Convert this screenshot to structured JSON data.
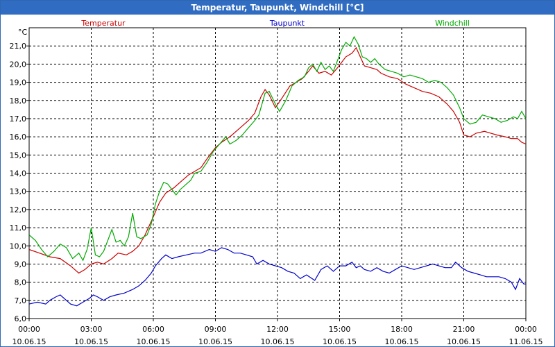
{
  "window": {
    "title": "Temperatur, Taupunkt, Windchill [°C]"
  },
  "chart_data": {
    "type": "line",
    "title": "Temperatur, Taupunkt, Windchill [°C]",
    "ylabel": "°C",
    "ylim": [
      6.0,
      22.0
    ],
    "yticks": [
      "6,0",
      "7,0",
      "8,0",
      "9,0",
      "10,0",
      "11,0",
      "12,0",
      "13,0",
      "14,0",
      "15,0",
      "16,0",
      "17,0",
      "18,0",
      "19,0",
      "20,0",
      "21,0"
    ],
    "xlim": [
      0,
      24
    ],
    "xticks": [
      {
        "time": "00:00",
        "date": "10.06.15"
      },
      {
        "time": "03:00",
        "date": "10.06.15"
      },
      {
        "time": "06:00",
        "date": "10.06.15"
      },
      {
        "time": "09:00",
        "date": "10.06.15"
      },
      {
        "time": "12:00",
        "date": "10.06.15"
      },
      {
        "time": "15:00",
        "date": "10.06.15"
      },
      {
        "time": "18:00",
        "date": "10.06.15"
      },
      {
        "time": "21:00",
        "date": "10.06.15"
      },
      {
        "time": "00:00",
        "date": "11.06.15"
      }
    ],
    "grid": true,
    "legend_placement": "top",
    "series": [
      {
        "name": "Temperatur",
        "color": "#cc0000",
        "points": [
          [
            0.0,
            9.8
          ],
          [
            0.5,
            9.6
          ],
          [
            1.0,
            9.4
          ],
          [
            1.5,
            9.3
          ],
          [
            2.0,
            8.9
          ],
          [
            2.2,
            8.7
          ],
          [
            2.4,
            8.5
          ],
          [
            2.7,
            8.7
          ],
          [
            3.0,
            9.0
          ],
          [
            3.3,
            9.1
          ],
          [
            3.6,
            9.0
          ],
          [
            4.0,
            9.3
          ],
          [
            4.3,
            9.6
          ],
          [
            4.7,
            9.5
          ],
          [
            5.0,
            9.7
          ],
          [
            5.3,
            10.0
          ],
          [
            5.6,
            10.6
          ],
          [
            6.0,
            11.6
          ],
          [
            6.3,
            12.4
          ],
          [
            6.6,
            12.9
          ],
          [
            7.0,
            13.2
          ],
          [
            7.3,
            13.5
          ],
          [
            7.7,
            13.9
          ],
          [
            8.0,
            14.1
          ],
          [
            8.3,
            14.3
          ],
          [
            8.6,
            14.8
          ],
          [
            9.0,
            15.4
          ],
          [
            9.3,
            15.7
          ],
          [
            9.7,
            16.0
          ],
          [
            10.0,
            16.3
          ],
          [
            10.3,
            16.6
          ],
          [
            10.6,
            16.9
          ],
          [
            10.9,
            17.3
          ],
          [
            11.2,
            18.2
          ],
          [
            11.4,
            18.6
          ],
          [
            11.6,
            18.3
          ],
          [
            11.9,
            17.6
          ],
          [
            12.2,
            18.1
          ],
          [
            12.6,
            18.8
          ],
          [
            12.9,
            19.0
          ],
          [
            13.2,
            19.2
          ],
          [
            13.5,
            19.6
          ],
          [
            13.7,
            19.9
          ],
          [
            14.0,
            19.5
          ],
          [
            14.3,
            19.6
          ],
          [
            14.6,
            19.4
          ],
          [
            14.9,
            19.8
          ],
          [
            15.1,
            20.1
          ],
          [
            15.3,
            20.4
          ],
          [
            15.6,
            20.6
          ],
          [
            15.8,
            20.9
          ],
          [
            16.0,
            20.4
          ],
          [
            16.2,
            19.9
          ],
          [
            16.5,
            19.8
          ],
          [
            16.8,
            19.7
          ],
          [
            17.0,
            19.5
          ],
          [
            17.4,
            19.3
          ],
          [
            17.8,
            19.2
          ],
          [
            18.2,
            18.9
          ],
          [
            18.6,
            18.7
          ],
          [
            19.0,
            18.5
          ],
          [
            19.4,
            18.4
          ],
          [
            19.8,
            18.2
          ],
          [
            20.2,
            17.8
          ],
          [
            20.5,
            17.4
          ],
          [
            20.8,
            16.8
          ],
          [
            21.0,
            16.1
          ],
          [
            21.3,
            16.0
          ],
          [
            21.6,
            16.2
          ],
          [
            22.0,
            16.3
          ],
          [
            22.3,
            16.2
          ],
          [
            22.6,
            16.1
          ],
          [
            23.0,
            16.0
          ],
          [
            23.3,
            15.9
          ],
          [
            23.6,
            15.9
          ],
          [
            23.8,
            15.7
          ],
          [
            24.0,
            15.6
          ]
        ]
      },
      {
        "name": "Taupunkt",
        "color": "#0000cc",
        "points": [
          [
            0.0,
            6.8
          ],
          [
            0.4,
            6.9
          ],
          [
            0.8,
            6.8
          ],
          [
            1.0,
            7.0
          ],
          [
            1.3,
            7.2
          ],
          [
            1.5,
            7.3
          ],
          [
            1.8,
            7.0
          ],
          [
            2.0,
            6.8
          ],
          [
            2.3,
            6.7
          ],
          [
            2.6,
            6.9
          ],
          [
            2.9,
            7.1
          ],
          [
            3.1,
            7.3
          ],
          [
            3.3,
            7.2
          ],
          [
            3.6,
            7.0
          ],
          [
            3.9,
            7.2
          ],
          [
            4.2,
            7.3
          ],
          [
            4.6,
            7.4
          ],
          [
            5.0,
            7.6
          ],
          [
            5.3,
            7.8
          ],
          [
            5.6,
            8.1
          ],
          [
            5.9,
            8.5
          ],
          [
            6.1,
            8.9
          ],
          [
            6.4,
            9.3
          ],
          [
            6.6,
            9.5
          ],
          [
            6.9,
            9.3
          ],
          [
            7.2,
            9.4
          ],
          [
            7.6,
            9.5
          ],
          [
            8.0,
            9.6
          ],
          [
            8.3,
            9.6
          ],
          [
            8.7,
            9.8
          ],
          [
            9.0,
            9.7
          ],
          [
            9.3,
            9.9
          ],
          [
            9.6,
            9.8
          ],
          [
            9.9,
            9.6
          ],
          [
            10.2,
            9.6
          ],
          [
            10.5,
            9.5
          ],
          [
            10.8,
            9.4
          ],
          [
            11.0,
            9.0
          ],
          [
            11.3,
            9.2
          ],
          [
            11.6,
            9.0
          ],
          [
            11.9,
            8.9
          ],
          [
            12.2,
            8.8
          ],
          [
            12.5,
            8.6
          ],
          [
            12.8,
            8.5
          ],
          [
            13.1,
            8.2
          ],
          [
            13.4,
            8.4
          ],
          [
            13.8,
            8.1
          ],
          [
            14.1,
            8.7
          ],
          [
            14.4,
            8.9
          ],
          [
            14.7,
            8.6
          ],
          [
            15.0,
            8.9
          ],
          [
            15.3,
            8.9
          ],
          [
            15.6,
            9.1
          ],
          [
            15.8,
            8.8
          ],
          [
            16.0,
            8.9
          ],
          [
            16.2,
            8.7
          ],
          [
            16.5,
            8.6
          ],
          [
            16.8,
            8.8
          ],
          [
            17.1,
            8.6
          ],
          [
            17.4,
            8.5
          ],
          [
            17.7,
            8.7
          ],
          [
            18.0,
            8.9
          ],
          [
            18.3,
            8.8
          ],
          [
            18.6,
            8.7
          ],
          [
            18.9,
            8.8
          ],
          [
            19.2,
            8.9
          ],
          [
            19.5,
            9.0
          ],
          [
            19.8,
            8.9
          ],
          [
            20.1,
            8.8
          ],
          [
            20.4,
            8.8
          ],
          [
            20.6,
            9.1
          ],
          [
            20.9,
            8.8
          ],
          [
            21.2,
            8.6
          ],
          [
            21.5,
            8.5
          ],
          [
            21.8,
            8.4
          ],
          [
            22.1,
            8.3
          ],
          [
            22.4,
            8.3
          ],
          [
            22.7,
            8.3
          ],
          [
            23.0,
            8.2
          ],
          [
            23.3,
            8.0
          ],
          [
            23.5,
            7.6
          ],
          [
            23.7,
            8.2
          ],
          [
            23.9,
            7.9
          ],
          [
            24.0,
            7.9
          ]
        ]
      },
      {
        "name": "Windchill",
        "color": "#00aa00",
        "points": [
          [
            0.0,
            10.6
          ],
          [
            0.3,
            10.3
          ],
          [
            0.6,
            9.8
          ],
          [
            0.9,
            9.4
          ],
          [
            1.2,
            9.7
          ],
          [
            1.5,
            10.1
          ],
          [
            1.8,
            9.9
          ],
          [
            2.1,
            9.3
          ],
          [
            2.4,
            9.6
          ],
          [
            2.6,
            9.2
          ],
          [
            2.8,
            9.8
          ],
          [
            3.0,
            11.0
          ],
          [
            3.2,
            9.5
          ],
          [
            3.4,
            9.4
          ],
          [
            3.6,
            9.7
          ],
          [
            3.8,
            10.3
          ],
          [
            4.0,
            10.9
          ],
          [
            4.2,
            10.2
          ],
          [
            4.4,
            10.3
          ],
          [
            4.6,
            10.0
          ],
          [
            4.8,
            10.5
          ],
          [
            5.0,
            11.8
          ],
          [
            5.2,
            10.5
          ],
          [
            5.4,
            10.4
          ],
          [
            5.7,
            10.6
          ],
          [
            5.9,
            11.2
          ],
          [
            6.1,
            12.3
          ],
          [
            6.3,
            13.0
          ],
          [
            6.5,
            13.5
          ],
          [
            6.7,
            13.4
          ],
          [
            6.9,
            13.1
          ],
          [
            7.1,
            12.8
          ],
          [
            7.3,
            13.1
          ],
          [
            7.6,
            13.4
          ],
          [
            7.8,
            13.6
          ],
          [
            8.0,
            14.0
          ],
          [
            8.3,
            14.1
          ],
          [
            8.6,
            14.6
          ],
          [
            8.9,
            15.2
          ],
          [
            9.2,
            15.6
          ],
          [
            9.5,
            16.0
          ],
          [
            9.7,
            15.6
          ],
          [
            10.0,
            15.8
          ],
          [
            10.3,
            16.1
          ],
          [
            10.6,
            16.5
          ],
          [
            10.9,
            16.9
          ],
          [
            11.1,
            17.2
          ],
          [
            11.4,
            18.4
          ],
          [
            11.6,
            18.5
          ],
          [
            11.9,
            17.8
          ],
          [
            12.1,
            17.4
          ],
          [
            12.4,
            18.0
          ],
          [
            12.7,
            18.8
          ],
          [
            13.0,
            19.1
          ],
          [
            13.3,
            19.3
          ],
          [
            13.5,
            19.8
          ],
          [
            13.7,
            20.0
          ],
          [
            13.9,
            19.6
          ],
          [
            14.1,
            20.1
          ],
          [
            14.3,
            19.7
          ],
          [
            14.5,
            19.9
          ],
          [
            14.7,
            19.6
          ],
          [
            14.9,
            20.2
          ],
          [
            15.1,
            20.8
          ],
          [
            15.3,
            21.2
          ],
          [
            15.5,
            21.0
          ],
          [
            15.7,
            21.5
          ],
          [
            15.9,
            21.1
          ],
          [
            16.1,
            20.4
          ],
          [
            16.3,
            20.3
          ],
          [
            16.5,
            20.1
          ],
          [
            16.7,
            20.3
          ],
          [
            16.9,
            20.0
          ],
          [
            17.2,
            19.7
          ],
          [
            17.5,
            19.6
          ],
          [
            17.8,
            19.5
          ],
          [
            18.1,
            19.3
          ],
          [
            18.4,
            19.4
          ],
          [
            18.7,
            19.3
          ],
          [
            19.0,
            19.2
          ],
          [
            19.3,
            19.0
          ],
          [
            19.6,
            19.1
          ],
          [
            19.9,
            19.0
          ],
          [
            20.2,
            18.7
          ],
          [
            20.5,
            18.3
          ],
          [
            20.8,
            17.6
          ],
          [
            21.0,
            17.0
          ],
          [
            21.3,
            16.7
          ],
          [
            21.6,
            16.8
          ],
          [
            21.9,
            17.2
          ],
          [
            22.2,
            17.1
          ],
          [
            22.5,
            17.0
          ],
          [
            22.8,
            16.8
          ],
          [
            23.1,
            16.9
          ],
          [
            23.4,
            17.1
          ],
          [
            23.6,
            17.0
          ],
          [
            23.8,
            17.4
          ],
          [
            24.0,
            17.0
          ]
        ]
      }
    ]
  }
}
